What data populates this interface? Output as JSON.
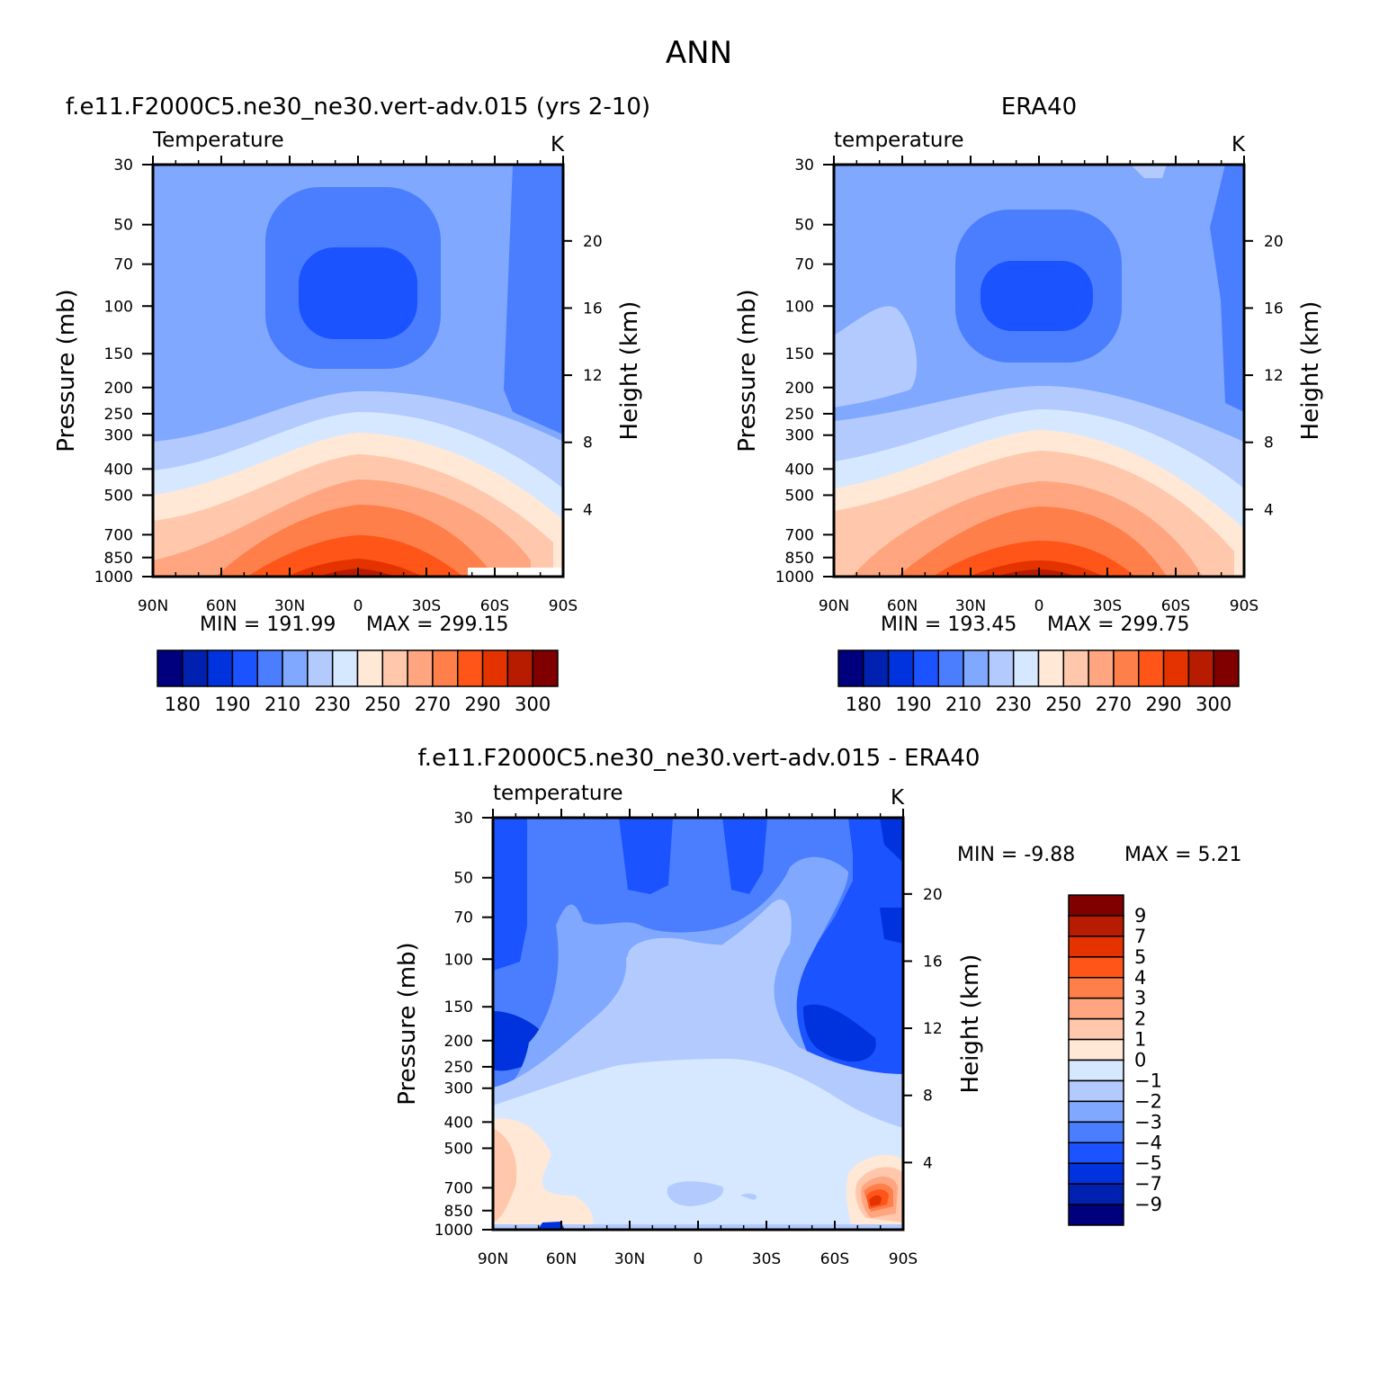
{
  "figure_title": "ANN",
  "chart_data": [
    {
      "type": "heatmap",
      "case_title": "f.e11.F2000C5.ne30_ne30.vert-adv.015 (yrs 2-10)",
      "variable": "Temperature",
      "units": "K",
      "ylabel": "Pressure (mb)",
      "ylabel_right": "Height (km)",
      "x_ticks": [
        "90N",
        "60N",
        "30N",
        "0",
        "30S",
        "60S",
        "90S"
      ],
      "x_values": [
        90,
        60,
        30,
        0,
        -30,
        -60,
        -90
      ],
      "y_ticks": [
        30,
        50,
        70,
        100,
        150,
        200,
        250,
        300,
        400,
        500,
        700,
        850,
        1000
      ],
      "height_ticks": [
        20,
        16,
        12,
        8,
        4
      ],
      "ylim": [
        1000,
        30
      ],
      "y_scale": "log",
      "min_label": "MIN = 191.99",
      "max_label": "MAX = 299.15",
      "min": 191.99,
      "max": 299.15,
      "colorbar_labels": [
        "180",
        "190",
        "210",
        "230",
        "250",
        "270",
        "290",
        "300"
      ]
    },
    {
      "type": "heatmap",
      "case_title": "ERA40",
      "variable": "temperature",
      "units": "K",
      "ylabel": "Pressure (mb)",
      "ylabel_right": "Height (km)",
      "x_ticks": [
        "90N",
        "60N",
        "30N",
        "0",
        "30S",
        "60S",
        "90S"
      ],
      "x_values": [
        90,
        60,
        30,
        0,
        -30,
        -60,
        -90
      ],
      "y_ticks": [
        30,
        50,
        70,
        100,
        150,
        200,
        250,
        300,
        400,
        500,
        700,
        850,
        1000
      ],
      "height_ticks": [
        20,
        16,
        12,
        8,
        4
      ],
      "ylim": [
        1000,
        30
      ],
      "y_scale": "log",
      "min_label": "MIN = 193.45",
      "max_label": "MAX = 299.75",
      "min": 193.45,
      "max": 299.75,
      "colorbar_labels": [
        "180",
        "190",
        "210",
        "230",
        "250",
        "270",
        "290",
        "300"
      ]
    },
    {
      "type": "heatmap",
      "case_title": "f.e11.F2000C5.ne30_ne30.vert-adv.015 - ERA40",
      "variable": "temperature",
      "units": "K",
      "ylabel": "Pressure (mb)",
      "ylabel_right": "Height (km)",
      "x_ticks": [
        "90N",
        "60N",
        "30N",
        "0",
        "30S",
        "60S",
        "90S"
      ],
      "x_values": [
        90,
        60,
        30,
        0,
        -30,
        -60,
        -90
      ],
      "y_ticks": [
        30,
        50,
        70,
        100,
        150,
        200,
        250,
        300,
        400,
        500,
        700,
        850,
        1000
      ],
      "height_ticks": [
        20,
        16,
        12,
        8,
        4
      ],
      "ylim": [
        1000,
        30
      ],
      "y_scale": "log",
      "min_label": "MIN = -9.88",
      "max_label": "MAX = 5.21",
      "min": -9.88,
      "max": 5.21,
      "colorbar_labels": [
        "9",
        "7",
        "5",
        "4",
        "3",
        "2",
        "1",
        "0",
        "-1",
        "-2",
        "-3",
        "-4",
        "-5",
        "-7",
        "-9"
      ]
    }
  ],
  "palette": [
    "#00007f",
    "#0020b0",
    "#0033dd",
    "#1a53ff",
    "#4a7eff",
    "#80a8ff",
    "#b3caff",
    "#d6e8ff",
    "#ffe8d6",
    "#ffc8ad",
    "#ffa680",
    "#ff7f4a",
    "#ff5519",
    "#e53300",
    "#b81c00",
    "#800000"
  ]
}
